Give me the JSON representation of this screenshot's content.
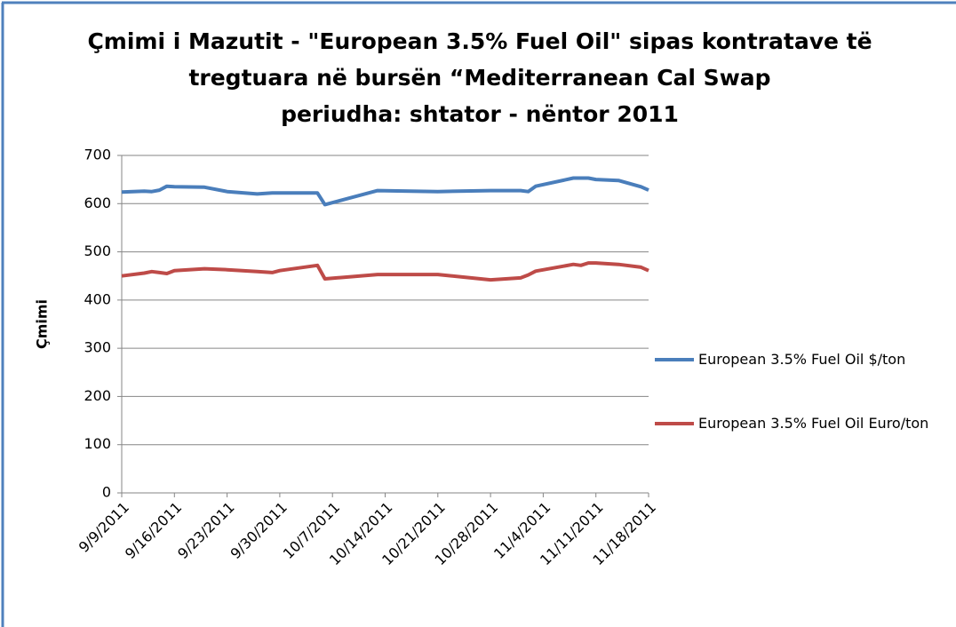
{
  "chart_data": {
    "type": "line",
    "title": "Çmimi i Mazutit - \"European 3.5% Fuel Oil\" sipas kontratave të",
    "subtitle": "tregtuara në bursën “Mediterranean Cal Swap",
    "period": "periudha: shtator - nëntor 2011",
    "y_label": "Çmimi",
    "ylim": [
      0,
      700
    ],
    "yticks": [
      0,
      100,
      200,
      300,
      400,
      500,
      600,
      700
    ],
    "xlim": [
      "9/9/2011",
      "11/18/2011"
    ],
    "xticks": [
      "9/9/2011",
      "9/16/2011",
      "9/23/2011",
      "9/30/2011",
      "10/7/2011",
      "10/14/2011",
      "10/21/2011",
      "10/28/2011",
      "11/4/2011",
      "11/11/2011",
      "11/18/2011"
    ],
    "grid": true,
    "legend": "right",
    "x": [
      "9/9/2011",
      "9/12/2011",
      "9/13/2011",
      "9/14/2011",
      "9/15/2011",
      "9/16/2011",
      "9/20/2011",
      "9/23/2011",
      "9/27/2011",
      "9/29/2011",
      "9/30/2011",
      "10/5/2011",
      "10/6/2011",
      "10/13/2011",
      "10/21/2011",
      "10/28/2011",
      "11/1/2011",
      "11/2/2011",
      "11/3/2011",
      "11/8/2011",
      "11/9/2011",
      "11/10/2011",
      "11/11/2011",
      "11/14/2011",
      "11/17/2011",
      "11/18/2011"
    ],
    "series": [
      {
        "name": "European 3.5% Fuel Oil $/ton",
        "color": "#4a7ebb",
        "values": [
          624,
          626,
          625,
          628,
          636,
          635,
          634,
          625,
          620,
          622,
          622,
          622,
          598,
          627,
          625,
          627,
          627,
          625,
          636,
          653,
          653,
          653,
          650,
          648,
          635,
          628
        ]
      },
      {
        "name": "European 3.5% Fuel Oil Euro/ton",
        "color": "#be4b48",
        "values": [
          450,
          456,
          459,
          457,
          455,
          461,
          465,
          463,
          459,
          457,
          461,
          472,
          444,
          453,
          453,
          442,
          446,
          452,
          460,
          474,
          472,
          477,
          477,
          474,
          468,
          461
        ]
      }
    ]
  }
}
